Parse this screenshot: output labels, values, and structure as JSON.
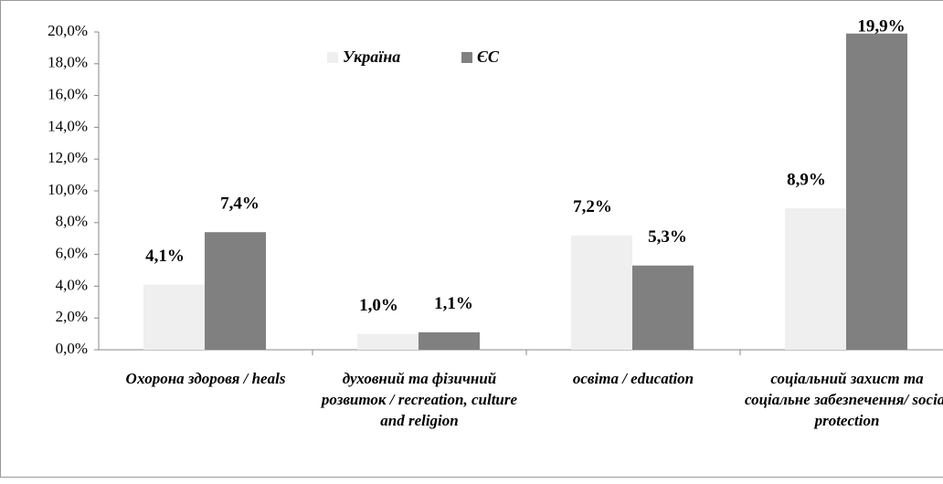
{
  "chart_data": {
    "type": "bar",
    "categories": [
      "Охорона здоровя / heals",
      "духовний та фізичний розвиток / recreation, culture and religion",
      "освіта / education",
      "соціальний захист та соціальне забезпечення/ social protection"
    ],
    "series": [
      {
        "name": "Україна",
        "color": "#efefef",
        "values": [
          4.1,
          1.0,
          7.2,
          8.9
        ],
        "value_labels": [
          "4,1%",
          "1,0%",
          "7,2%",
          "8,9%"
        ]
      },
      {
        "name": "ЄС",
        "color": "#808080",
        "values": [
          7.4,
          1.1,
          5.3,
          19.9
        ],
        "value_labels": [
          "7,4%",
          "1,1%",
          "5,3%",
          "19,9%"
        ]
      }
    ],
    "ylim": [
      0,
      20
    ],
    "yticks": [
      {
        "value": 0,
        "label": "0,0%"
      },
      {
        "value": 2,
        "label": "2,0%"
      },
      {
        "value": 4,
        "label": "4,0%"
      },
      {
        "value": 6,
        "label": "6,0%"
      },
      {
        "value": 8,
        "label": "8,0%"
      },
      {
        "value": 10,
        "label": "10,0%"
      },
      {
        "value": 12,
        "label": "12,0%"
      },
      {
        "value": 14,
        "label": "14,0%"
      },
      {
        "value": 16,
        "label": "16,0%"
      },
      {
        "value": 18,
        "label": "18,0%"
      },
      {
        "value": 20,
        "label": "20,0%"
      }
    ],
    "grid": false
  }
}
